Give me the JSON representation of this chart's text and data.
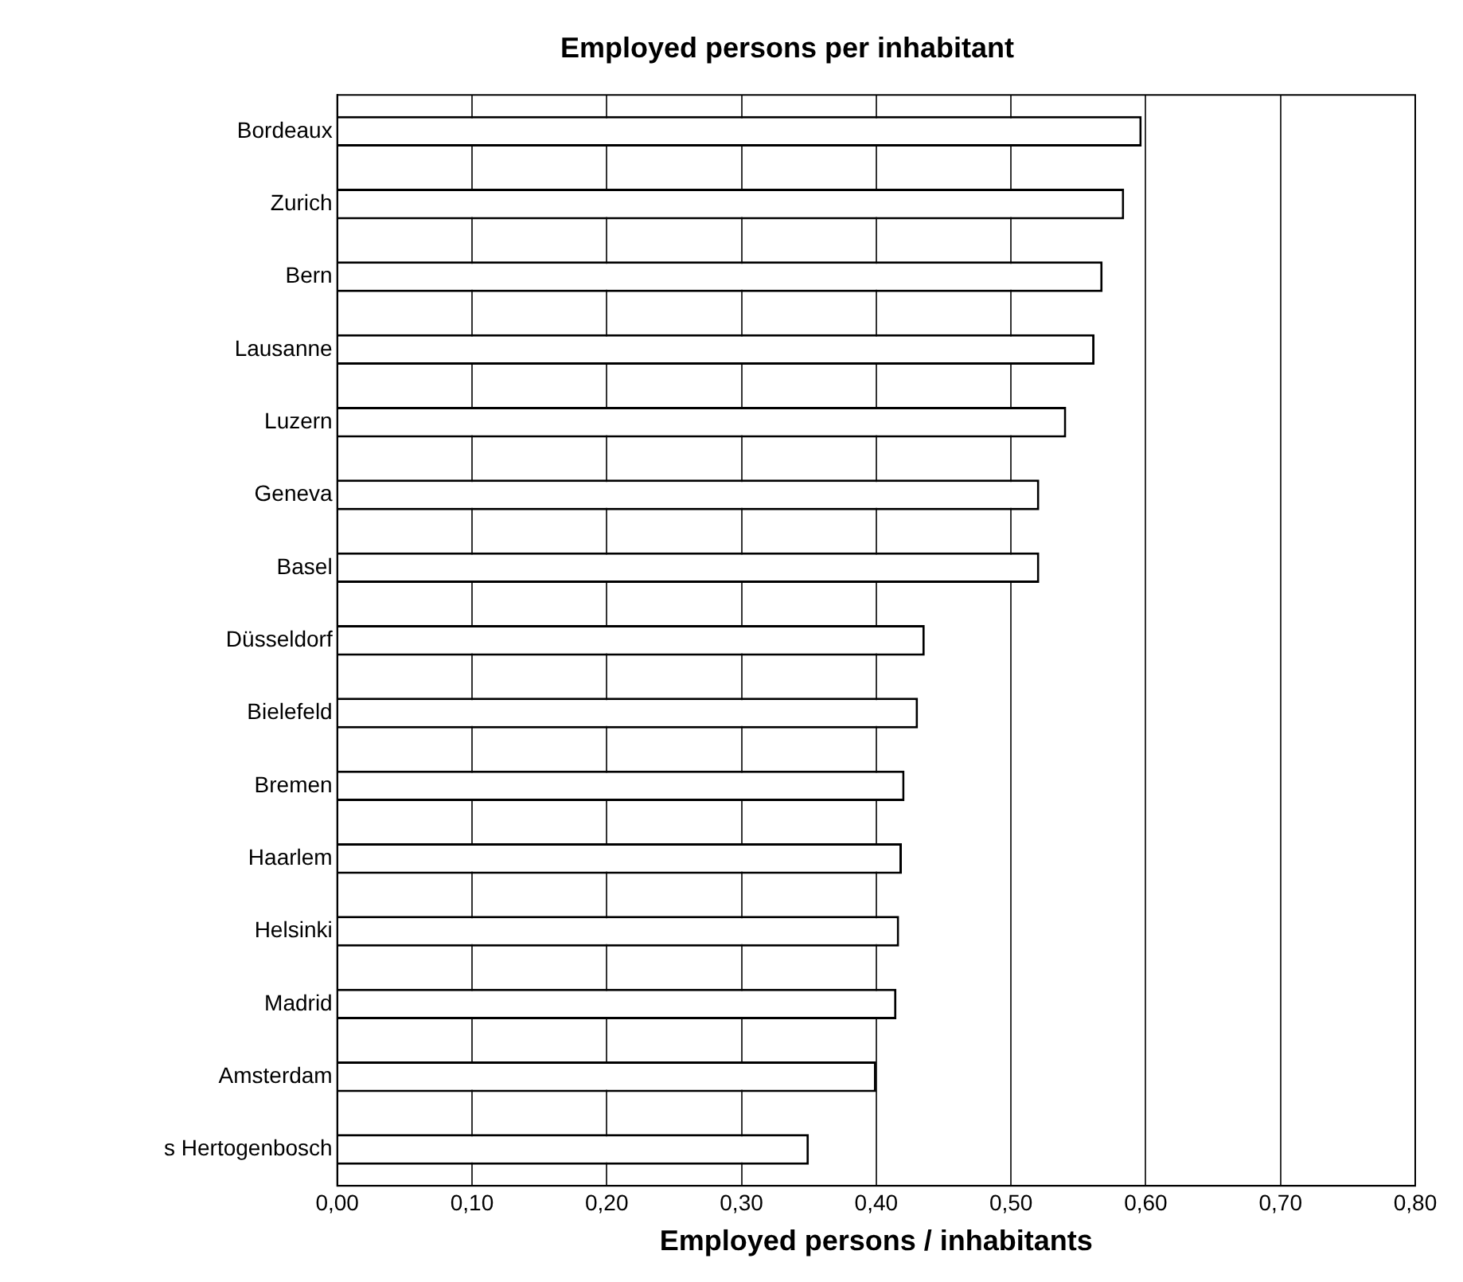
{
  "chart_data": {
    "type": "bar",
    "orientation": "horizontal",
    "title": "Employed persons per inhabitant",
    "xlabel": "Employed persons / inhabitants",
    "categories": [
      "Bordeaux",
      "Zurich",
      "Bern",
      "Lausanne",
      "Luzern",
      "Geneva",
      "Basel",
      "Düsseldorf",
      "Bielefeld",
      "Bremen",
      "Haarlem",
      "Helsinki",
      "Madrid",
      "Amsterdam",
      "s Hertogenbosch"
    ],
    "values": [
      0.597,
      0.584,
      0.568,
      0.562,
      0.541,
      0.521,
      0.521,
      0.436,
      0.431,
      0.421,
      0.419,
      0.417,
      0.415,
      0.4,
      0.35
    ],
    "color": "#ffffff",
    "xlim": [
      0,
      0.8
    ],
    "xticks": [
      {
        "value": 0,
        "label": "0,00"
      },
      {
        "value": 0.1,
        "label": "0,10"
      },
      {
        "value": 0.2,
        "label": "0,20"
      },
      {
        "value": 0.3,
        "label": "0,30"
      },
      {
        "value": 0.4,
        "label": "0,40"
      },
      {
        "value": 0.5,
        "label": "0,50"
      },
      {
        "value": 0.6,
        "label": "0,60"
      },
      {
        "value": 0.7,
        "label": "0,70"
      },
      {
        "value": 0.8,
        "label": "0,80"
      }
    ],
    "grid": "x",
    "legend": false
  }
}
